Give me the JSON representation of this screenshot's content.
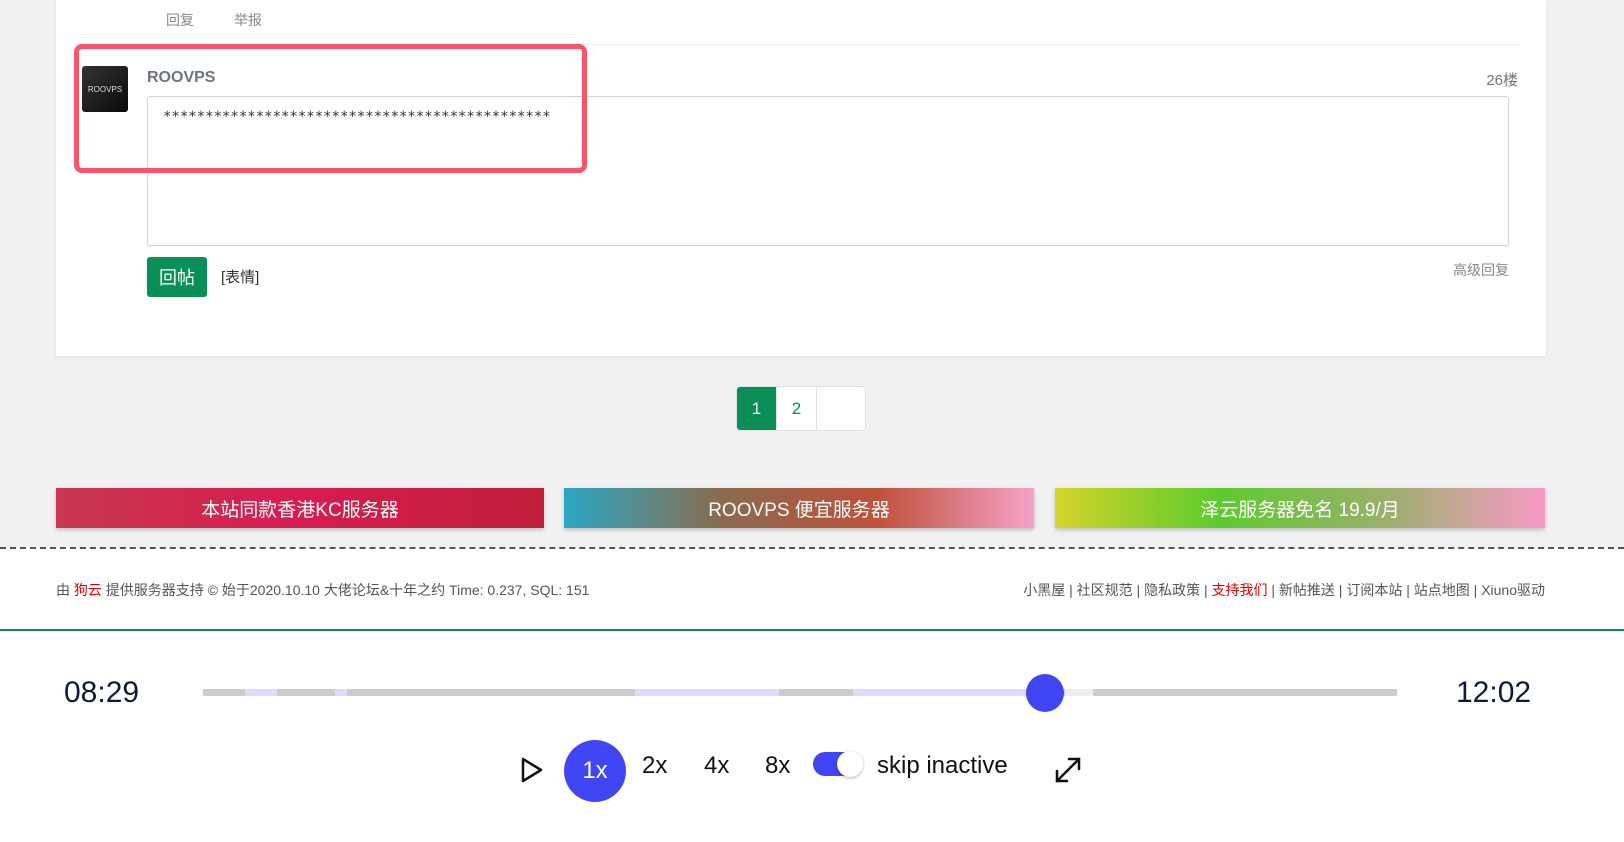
{
  "post": {
    "reply": "回复",
    "report": "举报"
  },
  "composer": {
    "username": "ROOVPS",
    "floor": "26楼",
    "text": "**********************************************",
    "submit": "回帖",
    "emoji": "[表情]",
    "advanced": "高级回复",
    "avatar_text": "ROOVPS"
  },
  "pagination": {
    "pages": [
      "1",
      "2"
    ],
    "current": "1"
  },
  "ads": [
    {
      "label": "本站同款香港KC服务器"
    },
    {
      "label": "ROOVPS 便宜服务器"
    },
    {
      "label": "泽云服务器免名 19.9/月"
    }
  ],
  "footer": {
    "prefix": "由",
    "sponsor": "狗云",
    "suffix": "提供服务器支持 © 始于2020.10.10 大佬论坛&十年之约 Time: 0.237, SQL: 151",
    "links": [
      "小黑屋",
      "社区规范",
      "隐私政策",
      "支持我们",
      "新帖推送",
      "订阅本站",
      "站点地图",
      "Xiuno驱动"
    ],
    "highlight_link": "支持我们"
  },
  "player": {
    "current_time": "08:29",
    "total_time": "12:02",
    "progress": 0.705,
    "speeds": [
      "1x",
      "2x",
      "4x",
      "8x"
    ],
    "active_speed": "1x",
    "skip_inactive_label": "skip inactive",
    "skip_inactive": true,
    "accent": "#4146f5"
  }
}
